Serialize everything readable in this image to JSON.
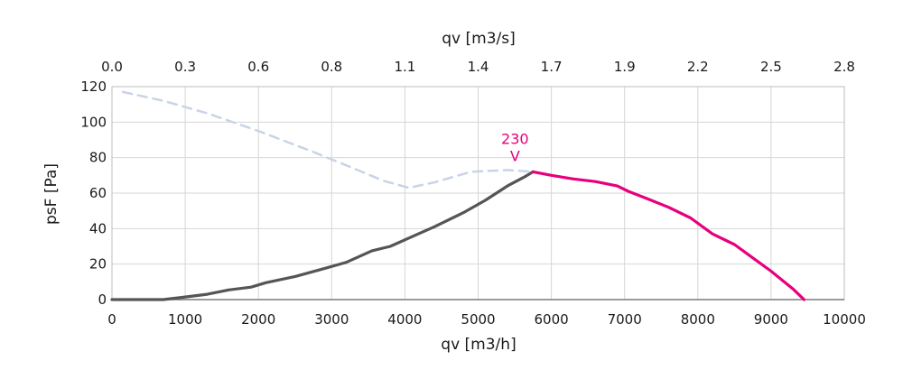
{
  "chart_data": {
    "type": "line",
    "title": "",
    "xlabel_bottom": "qv [m3/h]",
    "xlabel_top": "qv [m3/s]",
    "ylabel": "psF [Pa]",
    "xlim": [
      0,
      10000
    ],
    "ylim": [
      0,
      120
    ],
    "x_ticks": [
      "0",
      "1000",
      "2000",
      "3000",
      "4000",
      "5000",
      "6000",
      "7000",
      "8000",
      "9000",
      "10000"
    ],
    "x_top_ticks": [
      "0.0",
      "0.3",
      "0.6",
      "0.8",
      "1.1",
      "1.4",
      "1.7",
      "1.9",
      "2.2",
      "2.5",
      "2.8"
    ],
    "y_ticks": [
      "0",
      "20",
      "40",
      "60",
      "80",
      "100",
      "120"
    ],
    "grid": true,
    "annotation": {
      "text": "230",
      "marker": "V",
      "x": 5750,
      "y": 72,
      "color": "#e6007e"
    },
    "series": [
      {
        "color": "#c8d4e6",
        "style": "dashed",
        "x": [
          150,
          700,
          1300,
          2000,
          2700,
          3300,
          3700,
          4050,
          4400,
          4900,
          5400,
          5750
        ],
        "y": [
          117,
          112,
          105,
          95,
          84,
          74,
          67,
          63,
          66,
          72,
          73,
          72
        ]
      },
      {
        "color": "#555555",
        "style": "solid",
        "x": [
          0,
          700,
          1000,
          1300,
          1600,
          1900,
          2100,
          2500,
          2900,
          3200,
          3550,
          3800,
          4100,
          4400,
          4800,
          5100,
          5400,
          5650,
          5750
        ],
        "y": [
          0,
          0,
          1.5,
          3,
          5.5,
          7,
          9.5,
          13,
          17.5,
          21,
          27.5,
          30,
          35.5,
          41,
          49,
          56,
          64,
          69.5,
          72
        ]
      },
      {
        "color": "#e6007e",
        "style": "solid",
        "x": [
          5750,
          6000,
          6300,
          6600,
          6900,
          7050,
          7300,
          7600,
          7900,
          8200,
          8500,
          8700,
          9000,
          9300,
          9450
        ],
        "y": [
          72,
          70,
          68,
          66.5,
          64,
          61,
          57,
          52,
          46,
          37,
          31,
          25,
          16,
          6,
          0
        ]
      }
    ]
  }
}
